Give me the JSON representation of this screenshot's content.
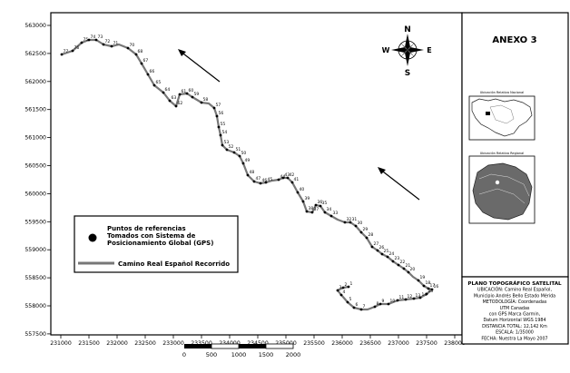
{
  "map": {
    "y_ticks": [
      "563000",
      "562500",
      "562000",
      "561500",
      "561000",
      "560500",
      "560000",
      "559500",
      "559000",
      "558500",
      "558000",
      "557500"
    ],
    "x_ticks": [
      "231000",
      "231500",
      "232000",
      "232500",
      "233000",
      "233500",
      "234000",
      "234500",
      "235000",
      "235500",
      "236000",
      "236500",
      "237000",
      "237500",
      "238000"
    ],
    "scale_labels": [
      "0",
      "500",
      "1000",
      "1500",
      "2000"
    ],
    "compass": {
      "n": "N",
      "s": "S",
      "e": "E",
      "w": "W"
    },
    "point_labels": [
      "77",
      "76",
      "75",
      "74",
      "73",
      "72",
      "71",
      "70",
      "68",
      "67",
      "66",
      "65",
      "64",
      "63",
      "62",
      "61",
      "60",
      "59",
      "58",
      "57",
      "56",
      "55",
      "54",
      "53",
      "52",
      "51",
      "50",
      "49",
      "48",
      "47",
      "46",
      "45",
      "44",
      "43",
      "42",
      "41",
      "40",
      "39",
      "38",
      "37",
      "36",
      "35",
      "34",
      "33",
      "32",
      "31",
      "30",
      "29",
      "28",
      "27",
      "26",
      "25",
      "24",
      "23",
      "22",
      "21",
      "20",
      "19",
      "18",
      "17",
      "16",
      "15",
      "14",
      "13",
      "12",
      "11",
      "10",
      "9",
      "8",
      "7",
      "6",
      "5",
      "4",
      "3",
      "2",
      "1"
    ]
  },
  "legend": {
    "points_label": "Puntos de referencias Tomados con Sistema de Posicionamiento Global (GPS)",
    "points_line1": "Puntos de referencias",
    "points_line2": "Tomados con Sistema de",
    "points_line3": "Posicionamiento Global (GPS)",
    "route_label": "Camino Real Español Recorrido"
  },
  "side_panel": {
    "title": "ANEXO 3",
    "inset1_caption": "Ubicación Relativa Nacional",
    "inset2_caption": "Ubicación Relativa Regional"
  },
  "info_box": {
    "lines": [
      "PLANO TOPOGRÁFICO SATELITAL",
      "UBICACIÓN: Camino Real Español,",
      "Municipio Andrés Bello Estado Mérida",
      "METODOLOGÍA: Coordenadas",
      "UTM Canadas",
      "con GPS Marca Garmin,",
      "Datum Horizontal WGS 1984",
      "DISTANCIA TOTAL: 12,142 Km",
      "ESCALA: 1/35000",
      "FECHA: Nuestra La Mayo 2007"
    ]
  },
  "colors": {
    "route": "#777777",
    "points": "#000000",
    "frame": "#000000"
  }
}
